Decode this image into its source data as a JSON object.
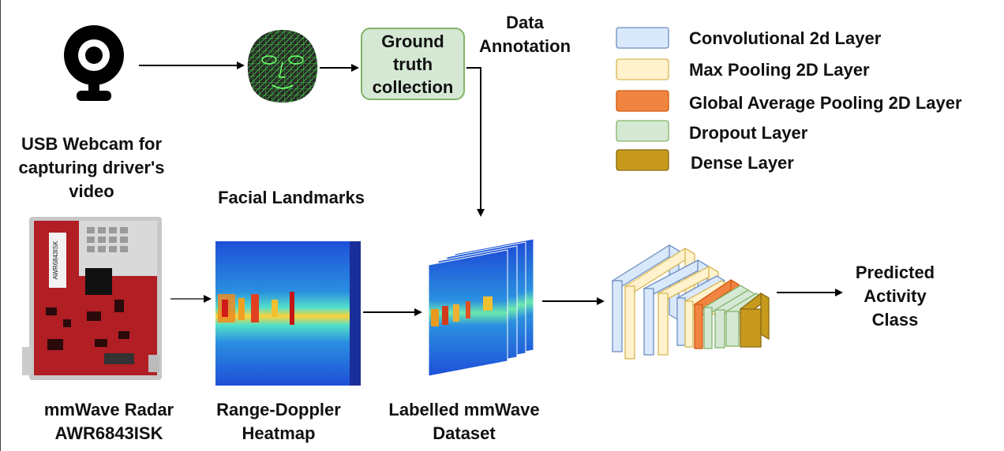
{
  "labels": {
    "webcam": "USB Webcam for\ncapturing driver's\nvideo",
    "facial_landmarks": "Facial Landmarks",
    "ground_truth": "Ground\ntruth\ncollection",
    "data_annotation": "Data\nAnnotation",
    "radar": "mmWave Radar\nAWR6843ISK",
    "heatmap": "Range-Doppler\nHeatmap",
    "dataset": "Labelled mmWave\nDataset",
    "predicted": "Predicted\nActivity\nClass",
    "radar_chip": "AWR6843ISK"
  },
  "legend": [
    {
      "label": "Convolutional 2d Layer",
      "color": "#dae8fc",
      "border": "#6c8ebf"
    },
    {
      "label": "Max Pooling 2D Layer",
      "color": "#fff2cc",
      "border": "#d6b656"
    },
    {
      "label": "Global Average Pooling 2D Layer",
      "color": "#f08440",
      "border": "#d05a10"
    },
    {
      "label": "Dropout Layer",
      "color": "#d5e8d4",
      "border": "#82b366"
    },
    {
      "label": "Dense Layer",
      "color": "#c79a1e",
      "border": "#8a6a10"
    }
  ]
}
